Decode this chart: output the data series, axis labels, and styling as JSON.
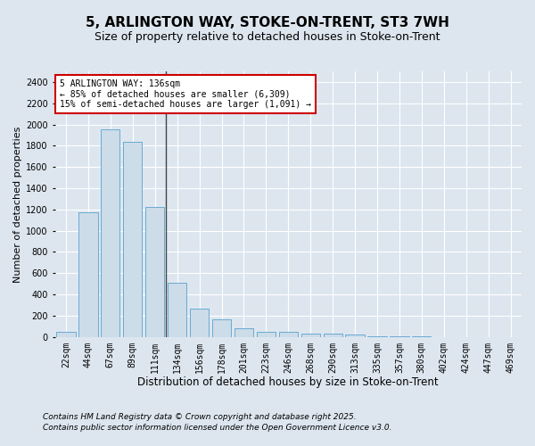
{
  "title1": "5, ARLINGTON WAY, STOKE-ON-TRENT, ST3 7WH",
  "title2": "Size of property relative to detached houses in Stoke-on-Trent",
  "xlabel": "Distribution of detached houses by size in Stoke-on-Trent",
  "ylabel": "Number of detached properties",
  "categories": [
    "22sqm",
    "44sqm",
    "67sqm",
    "89sqm",
    "111sqm",
    "134sqm",
    "156sqm",
    "178sqm",
    "201sqm",
    "223sqm",
    "246sqm",
    "268sqm",
    "290sqm",
    "313sqm",
    "335sqm",
    "357sqm",
    "380sqm",
    "402sqm",
    "424sqm",
    "447sqm",
    "469sqm"
  ],
  "values": [
    50,
    1175,
    1950,
    1840,
    1225,
    510,
    270,
    165,
    78,
    50,
    50,
    30,
    30,
    20,
    8,
    3,
    2,
    1,
    1,
    0,
    0
  ],
  "bar_color": "#ccdce8",
  "bar_edge_color": "#6aaad4",
  "vline_idx": 5,
  "vline_color": "#444444",
  "annotation_text": "5 ARLINGTON WAY: 136sqm\n← 85% of detached houses are smaller (6,309)\n15% of semi-detached houses are larger (1,091) →",
  "annotation_box_color": "#ffffff",
  "annotation_box_edge_color": "#cc0000",
  "bg_color": "#dde6ef",
  "grid_color": "#ffffff",
  "ylim": [
    0,
    2500
  ],
  "yticks": [
    0,
    200,
    400,
    600,
    800,
    1000,
    1200,
    1400,
    1600,
    1800,
    2000,
    2200,
    2400
  ],
  "footer1": "Contains HM Land Registry data © Crown copyright and database right 2025.",
  "footer2": "Contains public sector information licensed under the Open Government Licence v3.0.",
  "title1_fontsize": 11,
  "title2_fontsize": 9,
  "xlabel_fontsize": 8.5,
  "ylabel_fontsize": 8,
  "tick_fontsize": 7,
  "annotation_fontsize": 7,
  "footer_fontsize": 6.5
}
